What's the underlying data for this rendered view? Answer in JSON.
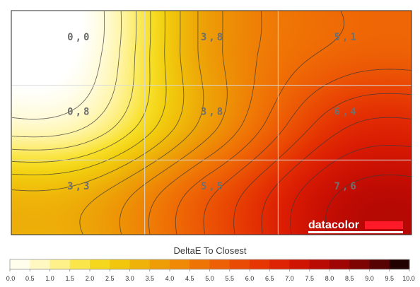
{
  "chart_data": {
    "type": "heatmap",
    "title": "DeltaE To Closest",
    "grid": {
      "rows": 3,
      "cols": 3
    },
    "values": [
      [
        0.0,
        3.8,
        5.1
      ],
      [
        0.8,
        3.8,
        6.4
      ],
      [
        3.3,
        5.5,
        7.6
      ]
    ],
    "value_labels": [
      [
        "0,0",
        "3,8",
        "5,1"
      ],
      [
        "0,8",
        "3,8",
        "6,4"
      ],
      [
        "3,3",
        "5,5",
        "7,6"
      ]
    ],
    "scale": {
      "min": 0.0,
      "max": 10.0,
      "ticks": [
        "0.0",
        "0.5",
        "1.0",
        "1.5",
        "2.0",
        "2.5",
        "3.0",
        "3.5",
        "4.0",
        "4.5",
        "5.0",
        "5.5",
        "6.0",
        "6.5",
        "7.0",
        "7.5",
        "8.0",
        "8.5",
        "9.0",
        "9.5",
        "10.0"
      ],
      "colors": [
        "#ffffff",
        "#fffbd8",
        "#fff5a8",
        "#fcec6c",
        "#f8e02a",
        "#f2cf10",
        "#f0bc0a",
        "#eda708",
        "#ee9306",
        "#ef7e06",
        "#ef6a05",
        "#ec5605",
        "#e84003",
        "#e22b03",
        "#d81a03",
        "#c60e03",
        "#ad0604",
        "#900404",
        "#6c0404",
        "#440202",
        "#000000"
      ]
    },
    "grid_lines": true,
    "contours": true
  },
  "branding": {
    "logo_text": "datacolor"
  }
}
